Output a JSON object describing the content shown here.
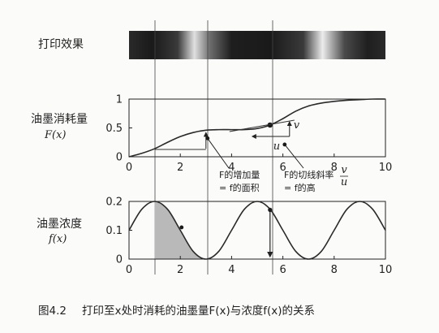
{
  "figure": {
    "strip_label": "打印效果",
    "caption": {
      "number": "图4.2",
      "text": "打印至x处时消耗的油墨量F(x)与浓度f(x)的关系"
    }
  },
  "chart_data": [
    {
      "type": "line",
      "ylabel_line1": "油墨消耗量",
      "ylabel_line2": "F(x)",
      "xlim": [
        0,
        10
      ],
      "ylim": [
        0,
        1
      ],
      "x_ticks": [
        "0",
        "2",
        "4",
        "6",
        "8",
        "10"
      ],
      "y_ticks": [
        "0",
        "0.5",
        "1"
      ],
      "grid": false,
      "series": [
        {
          "x": [
            0,
            0.5,
            1,
            1.5,
            2,
            2.5,
            3,
            3.5,
            4,
            4.5,
            5,
            5.5,
            6,
            6.5,
            7,
            7.5,
            8,
            8.5,
            9,
            9.5,
            10
          ],
          "values": [
            0,
            0.06,
            0.14,
            0.25,
            0.35,
            0.42,
            0.46,
            0.47,
            0.47,
            0.47,
            0.49,
            0.55,
            0.66,
            0.79,
            0.88,
            0.93,
            0.96,
            0.98,
            0.99,
            1.0,
            1.0
          ]
        }
      ],
      "annotations": {
        "point_x": 5.5,
        "increment_symbol": "v",
        "run_symbol": "u",
        "note_area_line1": "F的增加量",
        "note_area_line2": "= f的面积",
        "note_slope_line1": "F的切线斜率",
        "note_slope_frac_num": "v",
        "note_slope_frac_den": "u",
        "note_slope_line2": "= f的高"
      }
    },
    {
      "type": "line",
      "ylabel_line1": "油墨浓度",
      "ylabel_line2": "f(x)",
      "xlim": [
        0,
        10
      ],
      "ylim": [
        0,
        0.2
      ],
      "x_ticks": [
        "0",
        "2",
        "4",
        "6",
        "8",
        "10"
      ],
      "y_ticks": [
        "0",
        "0.1",
        "0.2"
      ],
      "grid": false,
      "series": [
        {
          "x": [
            0,
            0.5,
            1,
            1.5,
            2,
            2.5,
            3,
            3.5,
            4,
            4.5,
            5,
            5.5,
            6,
            6.5,
            7,
            7.5,
            8,
            8.5,
            9,
            9.5,
            10
          ],
          "values": [
            0.1,
            0.173,
            0.2,
            0.173,
            0.1,
            0.027,
            0.0,
            0.027,
            0.1,
            0.173,
            0.2,
            0.173,
            0.1,
            0.027,
            0.0,
            0.027,
            0.1,
            0.173,
            0.2,
            0.173,
            0.1
          ]
        }
      ],
      "shaded_interval": [
        1,
        3
      ]
    }
  ],
  "colors": {
    "curve": "#2a2a2a",
    "shade": "#b9b9b9",
    "strip_dark": "#1c1c1c",
    "strip_light": "#ffffff"
  }
}
